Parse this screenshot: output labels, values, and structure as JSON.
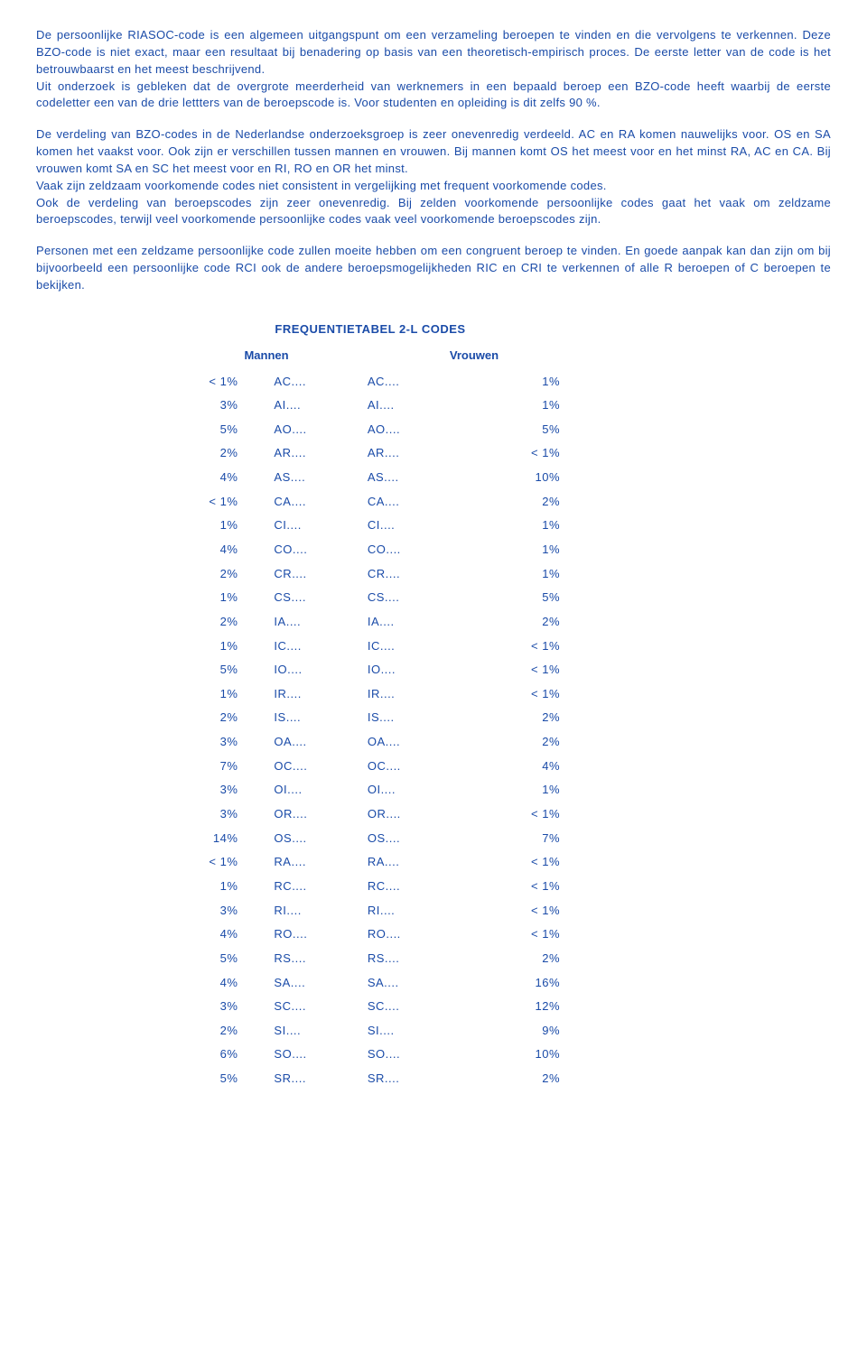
{
  "paragraphs": {
    "p1": "De persoonlijke RIASOC-code is een algemeen uitgangspunt om een verzameling beroepen te vinden en die vervolgens te verkennen. Deze BZO-code is niet exact, maar een resultaat bij benadering op basis van een theoretisch-empirisch proces. De eerste letter van de code is het betrouwbaarst en het meest beschrijvend.",
    "p2": "Uit onderzoek is gebleken dat de overgrote meerderheid van werknemers in een bepaald beroep een BZO-code heeft waarbij de eerste codeletter een van de drie lettters van de beroepscode is. Voor studenten en opleiding is dit zelfs 90 %.",
    "p3": "De verdeling van BZO-codes in de Nederlandse onderzoeksgroep is zeer onevenredig verdeeld. AC en RA komen nauwelijks voor. OS en SA komen het vaakst voor. Ook zijn er verschillen tussen mannen en vrouwen. Bij mannen komt OS het meest voor en het minst RA, AC en CA. Bij vrouwen komt SA en SC het meest voor en RI, RO en OR het minst.",
    "p4": "Vaak zijn zeldzaam voorkomende codes niet consistent in vergelijking met frequent voorkomende codes.",
    "p5": "Ook de verdeling van beroepscodes zijn zeer onevenredig. Bij zelden voorkomende persoonlijke codes gaat het vaak om zeldzame beroepscodes, terwijl veel voorkomende persoonlijke codes vaak veel voorkomende beroepscodes zijn.",
    "p6": "Personen met een zeldzame persoonlijke code zullen moeite hebben om een congruent beroep te vinden. En goede aanpak kan dan zijn om bij bijvoorbeeld een persoonlijke code RCI ook de andere beroepsmogelijkheden RIC en CRI te verkennen of alle R beroepen of C beroepen te bekijken."
  },
  "table": {
    "title": "FREQUENTIETABEL 2-L CODES",
    "header_men": "Mannen",
    "header_women": "Vrouwen",
    "rows": [
      {
        "m": "< 1%",
        "code": "AC",
        "w": "1%"
      },
      {
        "m": "3%",
        "code": "AI",
        "w": "1%"
      },
      {
        "m": "5%",
        "code": "AO",
        "w": "5%"
      },
      {
        "m": "2%",
        "code": "AR",
        "w": "< 1%"
      },
      {
        "m": "4%",
        "code": "AS",
        "w": "10%"
      },
      {
        "m": "< 1%",
        "code": "CA",
        "w": "2%"
      },
      {
        "m": "1%",
        "code": "CI",
        "w": "1%"
      },
      {
        "m": "4%",
        "code": "CO",
        "w": "1%"
      },
      {
        "m": "2%",
        "code": "CR",
        "w": "1%"
      },
      {
        "m": "1%",
        "code": "CS",
        "w": "5%"
      },
      {
        "m": "2%",
        "code": "IA",
        "w": "2%"
      },
      {
        "m": "1%",
        "code": "IC",
        "w": "< 1%"
      },
      {
        "m": "5%",
        "code": "IO",
        "w": "< 1%"
      },
      {
        "m": "1%",
        "code": "IR",
        "w": "< 1%"
      },
      {
        "m": "2%",
        "code": "IS",
        "w": "2%"
      },
      {
        "m": "3%",
        "code": "OA",
        "w": "2%"
      },
      {
        "m": "7%",
        "code": "OC",
        "w": "4%"
      },
      {
        "m": "3%",
        "code": "OI",
        "w": "1%"
      },
      {
        "m": "3%",
        "code": "OR",
        "w": "< 1%"
      },
      {
        "m": "14%",
        "code": "OS",
        "w": "7%"
      },
      {
        "m": "< 1%",
        "code": "RA",
        "w": "< 1%"
      },
      {
        "m": "1%",
        "code": "RC",
        "w": "< 1%"
      },
      {
        "m": "3%",
        "code": "RI",
        "w": "< 1%"
      },
      {
        "m": "4%",
        "code": "RO",
        "w": "< 1%"
      },
      {
        "m": "5%",
        "code": "RS",
        "w": "2%"
      },
      {
        "m": "4%",
        "code": "SA",
        "w": "16%"
      },
      {
        "m": "3%",
        "code": "SC",
        "w": "12%"
      },
      {
        "m": "2%",
        "code": "SI",
        "w": "9%"
      },
      {
        "m": "6%",
        "code": "SO",
        "w": "10%"
      },
      {
        "m": "5%",
        "code": "SR",
        "w": "2%"
      }
    ]
  }
}
